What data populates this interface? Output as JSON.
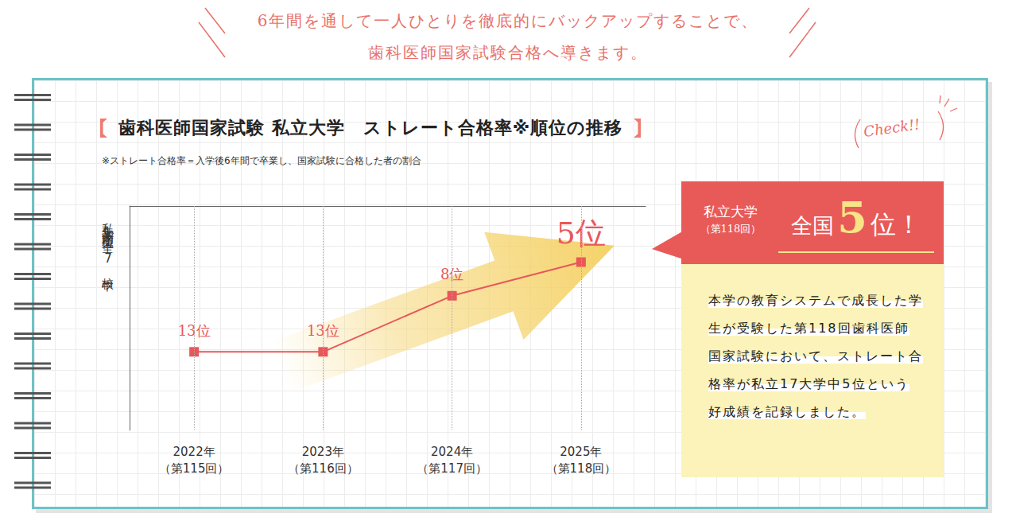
{
  "header": {
    "lines": [
      "6年間を通して一人ひとりを徹底的にバックアップすることで、",
      "歯科医師国家試験合格へ導きます。"
    ]
  },
  "chart_data": {
    "type": "line",
    "title": "歯科医師国家試験 私立大学　ストレート合格率※順位の推移",
    "subtitle": "※ストレート合格率＝入学後6年間で卒業し、国家試験に合格した者の割合",
    "y_label": "私立大学内順位（全17校中）",
    "categories": [
      "2022年（第115回）",
      "2023年（第116回）",
      "2024年（第117回）",
      "2025年（第118回）"
    ],
    "values": [
      13,
      13,
      8,
      5
    ],
    "value_labels": [
      "13位",
      "13位",
      "8位",
      "5位"
    ],
    "data_labels": true,
    "color": "#e8575a",
    "marker": "square",
    "line_style": "solid",
    "ylim": [
      20,
      0
    ],
    "tick_labels": "x",
    "grid": true
  },
  "callout": {
    "check": "Check!!",
    "label": "私立大学",
    "sub": "（第118回）",
    "prefix": "全国",
    "rank": "5",
    "suffix": "位！",
    "body": "本学の教育システムで成長した学生が受験した第118回歯科医師国家試験において、ストレート合格率が私立17大学中5位という好成績を記録しました。"
  }
}
